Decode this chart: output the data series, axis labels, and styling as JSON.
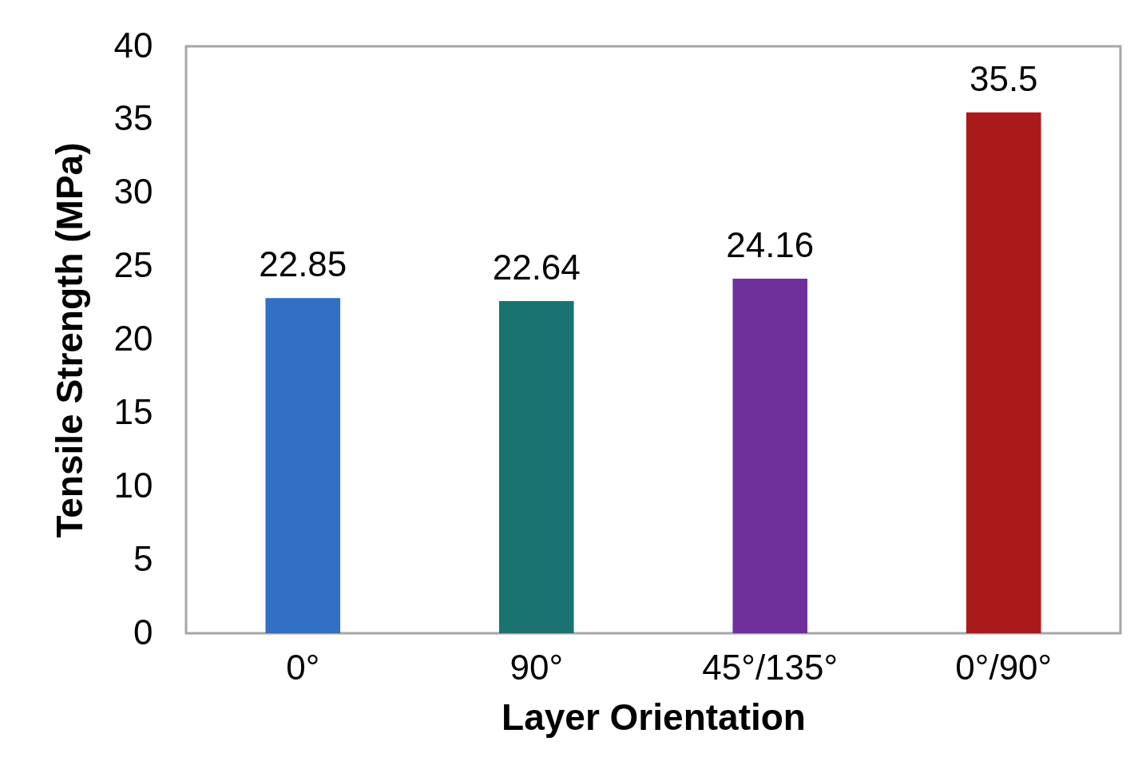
{
  "chart_data": {
    "type": "bar",
    "xlabel": "Layer Orientation",
    "ylabel": "Tensile Strength (MPa)",
    "categories": [
      "0°",
      "90°",
      "45°/135°",
      "0°/90°"
    ],
    "values": [
      22.85,
      22.64,
      24.16,
      35.5
    ],
    "colors": [
      "#3170c4",
      "#1a7370",
      "#6f309c",
      "#aa1a1a"
    ],
    "ylim": [
      0,
      40
    ],
    "yticks": [
      0,
      5,
      10,
      15,
      20,
      25,
      30,
      35,
      40
    ],
    "data_labels": true
  }
}
